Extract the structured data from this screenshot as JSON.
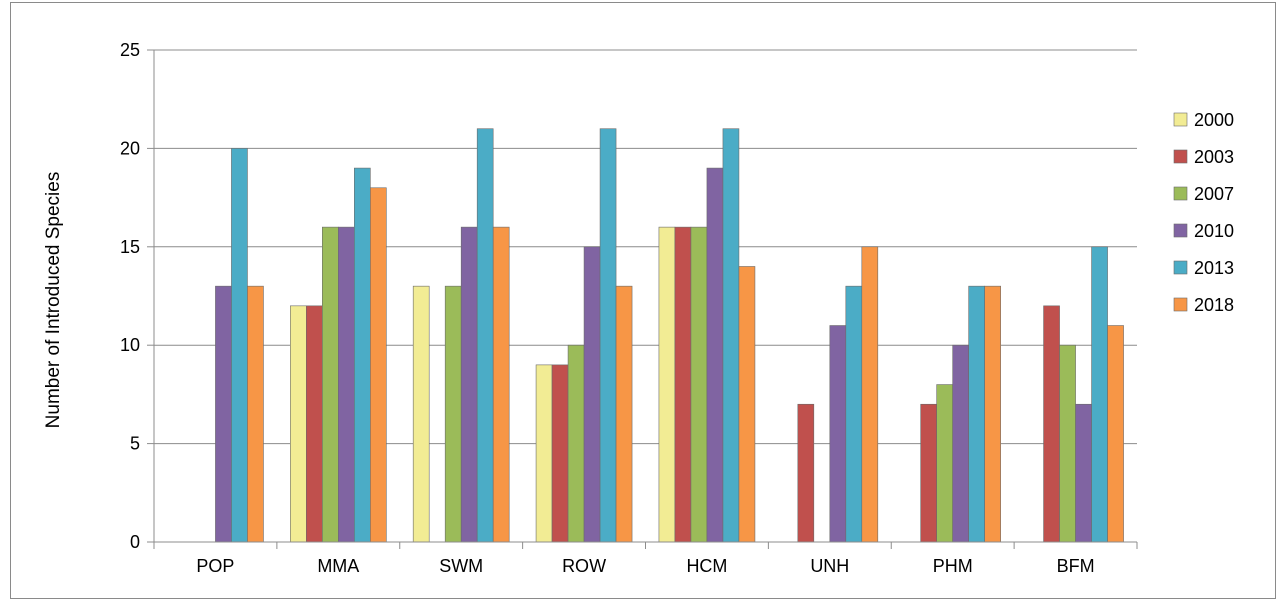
{
  "chart_data": {
    "type": "bar",
    "title": "",
    "xlabel": "",
    "ylabel": "Number of Introduced Species",
    "ylim": [
      0,
      25
    ],
    "yticks": [
      0,
      5,
      10,
      15,
      20,
      25
    ],
    "grid": true,
    "legend_position": "right",
    "categories": [
      "POP",
      "MMA",
      "SWM",
      "ROW",
      "HCM",
      "UNH",
      "PHM",
      "BFM"
    ],
    "series": [
      {
        "name": "2000",
        "color": "#f2ec94",
        "values": [
          0,
          12,
          13,
          9,
          16,
          0,
          0,
          0
        ]
      },
      {
        "name": "2003",
        "color": "#c0504d",
        "values": [
          0,
          12,
          0,
          9,
          16,
          7,
          7,
          12
        ]
      },
      {
        "name": "2007",
        "color": "#9bbb59",
        "values": [
          0,
          16,
          13,
          10,
          16,
          0,
          8,
          10
        ]
      },
      {
        "name": "2010",
        "color": "#8064a2",
        "values": [
          13,
          16,
          16,
          15,
          19,
          11,
          10,
          7
        ]
      },
      {
        "name": "2013",
        "color": "#4bacc6",
        "values": [
          20,
          19,
          21,
          21,
          21,
          13,
          13,
          15
        ]
      },
      {
        "name": "2018",
        "color": "#f79646",
        "values": [
          13,
          18,
          16,
          13,
          14,
          15,
          13,
          11
        ]
      }
    ]
  }
}
